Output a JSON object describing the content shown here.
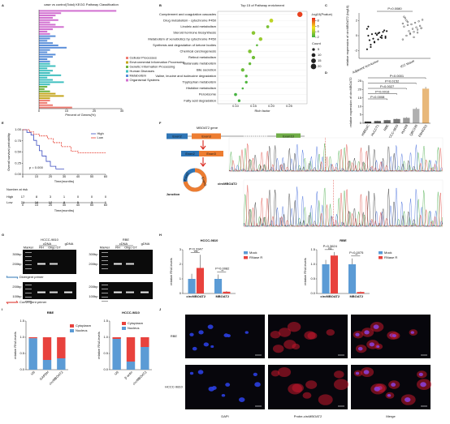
{
  "A": {
    "label": "A",
    "type": "bar",
    "title": "case vs control(Total) KEGG Pathway Classification",
    "xlabel": "Percent of Genes(%)",
    "xlim": [
      0,
      30
    ],
    "xticks": [
      0,
      10,
      20,
      30
    ],
    "series": [
      {
        "name": "Cellular Processes",
        "color": "#ef7d73",
        "values": [
          4,
          3,
          5,
          12
        ]
      },
      {
        "name": "Environmental Information Processing",
        "color": "#c4a51c",
        "values": [
          6,
          9,
          4
        ]
      },
      {
        "name": "Genetic Information Processing",
        "color": "#6db33f",
        "values": [
          3,
          2,
          4
        ]
      },
      {
        "name": "Human Diseases",
        "color": "#3fbfbf",
        "values": [
          4,
          6,
          3,
          5,
          4,
          8,
          3,
          5,
          9,
          4
        ]
      },
      {
        "name": "Metabolism",
        "color": "#5b8fd9",
        "values": [
          6,
          4,
          3,
          5,
          7,
          10,
          4,
          3,
          6,
          5,
          3,
          4
        ]
      },
      {
        "name": "Organismal Systems",
        "color": "#d16fd0",
        "values": [
          28,
          8,
          6,
          5,
          7,
          4,
          6,
          9,
          5,
          3,
          4
        ]
      }
    ]
  },
  "B": {
    "label": "B",
    "type": "scatter",
    "title": "Top 15 of Pathway enrichment",
    "xlabel": "Rich factor",
    "categories": [
      "Complement and coagulation cascades",
      "Drug metabolism - cytochrome P450",
      "Linoleic acid metabolism",
      "Steroid hormone biosynthesis",
      "Metabolism of xenobiotics by cytochrome P450",
      "Synthesis and degradation of ketone bodies",
      "Chemical carcinogenesis",
      "Retinol metabolism",
      "Butanoate metabolism",
      "Bile secretion",
      "Valine, leucine and isoleucine degradation",
      "Tryptophan metabolism",
      "Histidine metabolism",
      "Peroxisome",
      "Fatty acid degradation"
    ],
    "rich_factor": [
      0.28,
      0.2,
      0.19,
      0.15,
      0.17,
      0.16,
      0.14,
      0.15,
      0.14,
      0.12,
      0.13,
      0.13,
      0.12,
      0.1,
      0.11
    ],
    "pvalue": [
      8.5,
      4.5,
      3.2,
      3.5,
      3.8,
      2.6,
      3.3,
      3.0,
      2.8,
      2.9,
      2.5,
      2.4,
      2.3,
      2.2,
      2.2
    ],
    "count": [
      18,
      10,
      6,
      9,
      9,
      3,
      9,
      8,
      5,
      8,
      5,
      5,
      3,
      6,
      5
    ],
    "xlim": [
      0.05,
      0.3
    ],
    "xticks": [
      {
        "value": 0.1,
        "label": "0.10"
      },
      {
        "value": 0.15,
        "label": "0.15"
      },
      {
        "value": 0.2,
        "label": "0.20"
      },
      {
        "value": 0.25,
        "label": "0.25"
      }
    ],
    "color_title": "-log10(Pvalue)",
    "colorscale": [
      "#3cb043",
      "#f2e21b",
      "#e8251f"
    ],
    "color_lim": [
      2,
      9
    ],
    "color_ticks": [
      2,
      4,
      6,
      8
    ],
    "size_title": "Count",
    "size_ticks": [
      5,
      10,
      15,
      20
    ]
  },
  "C": {
    "label": "C",
    "type": "scatter",
    "ylabel": "relative expression of circMBOAT2 (log10)",
    "annotation": "P=0.0080",
    "categories": [
      "Adjacent non-tumor",
      "ICC tissue"
    ],
    "series": [
      {
        "name": "Adjacent non-tumor",
        "color": "#111111",
        "values": [
          -1.8,
          -1.2,
          -0.9,
          -0.5,
          -0.3,
          -0.1,
          0,
          0.2,
          0.3,
          0.4,
          0.5,
          0.6,
          -0.6,
          -0.4,
          0.1,
          -0.2,
          0.7,
          0.9,
          -1.5,
          -0.8,
          0.3,
          0.0,
          -0.3,
          1.2
        ]
      },
      {
        "name": "ICC tissue",
        "color": "#111111",
        "values": [
          -0.5,
          0,
          0.3,
          0.5,
          0.8,
          1,
          1.2,
          1.4,
          1.5,
          1.7,
          1.9,
          2.1,
          2.3,
          0.6,
          0.9,
          1.1,
          1.3,
          1.6,
          2,
          0.2,
          -0.2,
          0.4,
          1.0,
          2.5,
          1.8
        ]
      }
    ],
    "ylim": [
      -3,
      3
    ],
    "yticks": [
      -2,
      0,
      2
    ]
  },
  "D": {
    "label": "D",
    "type": "bar",
    "ylabel": "relative expression of circMBOAT2",
    "categories": [
      "HIBEpiC",
      "HuCCT1",
      "RBE",
      "HCCC-9810",
      "HuH28",
      "QBC939",
      "FRH0201"
    ],
    "values": [
      1,
      1.3,
      1.8,
      2.5,
      3.2,
      8.5,
      20.5
    ],
    "errors": [
      0.1,
      0.2,
      0.2,
      0.3,
      0.4,
      0.8,
      1
    ],
    "colors": [
      "#333333",
      "#555555",
      "#666666",
      "#777777",
      "#999999",
      "#b0b0b0",
      "#e8b87a"
    ],
    "ylim": [
      0,
      25
    ],
    "yticks": [
      0,
      5,
      10,
      15,
      20,
      25
    ],
    "annotations": [
      "P<0.0001",
      "P=0.0152",
      "P=0.0027",
      "P=0.0016",
      "P=0.0008"
    ]
  },
  "E": {
    "label": "E",
    "type": "line",
    "ylabel": "Overall survival probability",
    "xlabel": "Time(months)",
    "annotation": "p = 0.000",
    "risk_title": "Number at risk",
    "xlim": [
      0,
      60
    ],
    "xticks": [
      0,
      10,
      20,
      30,
      40,
      50,
      60
    ],
    "ylim": [
      0,
      1
    ],
    "yticks": [
      {
        "value": 0,
        "label": "0.00"
      },
      {
        "value": 0.25,
        "label": "0.25"
      },
      {
        "value": 0.5,
        "label": "0.50"
      },
      {
        "value": 0.75,
        "label": "0.75"
      },
      {
        "value": 1,
        "label": "1.00"
      }
    ],
    "series": [
      {
        "name": "High",
        "color": "#3b4cc0",
        "x": [
          0,
          3,
          6,
          8,
          10,
          12,
          14,
          17,
          20,
          24,
          30
        ],
        "values": [
          1,
          0.94,
          0.88,
          0.76,
          0.65,
          0.53,
          0.41,
          0.29,
          0.18,
          0.12,
          0.12
        ],
        "at_risk": [
          17,
          8,
          3,
          1,
          0,
          0,
          0
        ]
      },
      {
        "name": "Low",
        "color": "#e63b2e",
        "x": [
          0,
          5,
          8,
          12,
          18,
          22,
          28,
          35,
          40,
          50,
          60
        ],
        "values": [
          1,
          0.95,
          0.9,
          0.86,
          0.8,
          0.71,
          0.62,
          0.52,
          0.48,
          0.48,
          0.48
        ],
        "at_risk": [
          21,
          16,
          12,
          8,
          5,
          3,
          1
        ]
      }
    ]
  },
  "F": {
    "label": "F",
    "gene": "MBOAT2 gene",
    "exons": [
      "Exon2",
      "Exon3",
      "Exon13"
    ],
    "circ": "circMBOAT2",
    "junction": "Junction"
  },
  "G": {
    "label": "G",
    "cells": [
      "HCCC-9810",
      "RBE"
    ],
    "cdna": "cDNA",
    "gdna": "gDNA",
    "lanes": [
      "Marker",
      "RH",
      "Oligo DT"
    ],
    "markers": [
      "300bp",
      "200bp",
      "100bp"
    ],
    "divergent": "Divergent primer",
    "convergent": "Convergent primer"
  },
  "H": {
    "label": "H",
    "charts": [
      {
        "type": "bar",
        "title": "HCCC-9810",
        "ylabel": "relative RNA levels",
        "categories": [
          "circMBOAT2",
          "MBOAT2"
        ],
        "series": [
          {
            "name": "Mock",
            "color": "#5b9bd5",
            "values": [
              1,
              1
            ],
            "errors": [
              0.35,
              0.3
            ]
          },
          {
            "name": "RNase R",
            "color": "#e8423d",
            "values": [
              1.75,
              0.12
            ],
            "errors": [
              0.9,
              0.05
            ]
          }
        ],
        "ylim": [
          0,
          3
        ],
        "yticks": [
          0,
          1,
          2,
          3
        ],
        "annotations": [
          "P=0.3347",
          "P=0.0082"
        ],
        "significance": [
          "ns",
          "**"
        ]
      },
      {
        "type": "bar",
        "title": "RBE",
        "ylabel": "relative RNA levels",
        "categories": [
          "circMBOAT2",
          "MBOAT2"
        ],
        "series": [
          {
            "name": "Mock",
            "color": "#5b9bd5",
            "values": [
              1,
              1
            ],
            "errors": [
              0.15,
              0.2
            ]
          },
          {
            "name": "RNase R",
            "color": "#e8423d",
            "values": [
              1.3,
              0.05
            ],
            "errors": [
              0.12,
              0.02
            ]
          }
        ],
        "ylim": [
          0,
          1.5
        ],
        "yticks": [
          {
            "value": 0,
            "label": "0.0"
          },
          {
            "value": 0.5,
            "label": "0.5"
          },
          {
            "value": 1,
            "label": "1.0"
          },
          {
            "value": 1.5,
            "label": "1.5"
          }
        ],
        "annotations": [
          "P=0.3624",
          "P=0.0075"
        ],
        "significance": [
          "ns",
          "**"
        ]
      }
    ]
  },
  "I": {
    "label": "I",
    "charts": [
      {
        "type": "stacked-bar",
        "title": "RBE",
        "ylabel": "relative RNA levels",
        "categories": [
          "U6",
          "GAPDH",
          "circMBOAT2"
        ],
        "series": [
          {
            "name": "Cytoplasm",
            "color": "#e8423d",
            "values": [
              0.03,
              0.7,
              0.65
            ]
          },
          {
            "name": "Nucleus",
            "color": "#5b9bd5",
            "values": [
              0.97,
              0.3,
              0.35
            ]
          }
        ],
        "ylim": [
          0,
          1.5
        ],
        "yticks": [
          {
            "value": 0,
            "label": "0.0"
          },
          {
            "value": 0.5,
            "label": "0.5"
          },
          {
            "value": 1,
            "label": "1.0"
          },
          {
            "value": 1.5,
            "label": "1.5"
          }
        ]
      },
      {
        "type": "stacked-bar",
        "title": "HCCC-9810",
        "ylabel": "relative RNA levels",
        "categories": [
          "U6",
          "β-actin",
          "circMBOAT2"
        ],
        "series": [
          {
            "name": "Cytoplasm",
            "color": "#e8423d",
            "values": [
              0.05,
              0.75,
              0.3
            ]
          },
          {
            "name": "Nucleus",
            "color": "#5b9bd5",
            "values": [
              0.95,
              0.25,
              0.7
            ]
          }
        ],
        "ylim": [
          0,
          1.5
        ],
        "yticks": [
          {
            "value": 0,
            "label": "0.0"
          },
          {
            "value": 0.5,
            "label": "0.5"
          },
          {
            "value": 1,
            "label": "1.0"
          },
          {
            "value": 1.5,
            "label": "1.5"
          }
        ]
      }
    ]
  },
  "J": {
    "label": "J",
    "rows": [
      "RBE",
      "HCCC-9810"
    ],
    "cols": [
      "DAPI",
      "Probe-circMBOAT2",
      "Merge"
    ]
  }
}
